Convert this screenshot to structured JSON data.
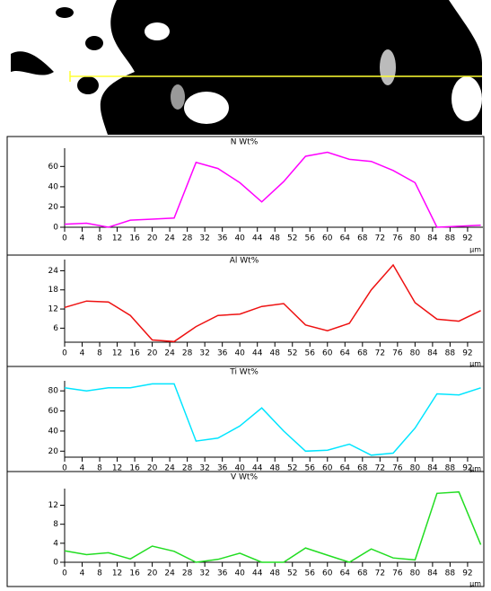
{
  "chart_data": [
    {
      "type": "line",
      "title": "N Wt%",
      "xlabel": "µm",
      "color": "#ff00ff",
      "x": [
        0,
        5,
        10,
        15,
        20,
        25,
        30,
        35,
        40,
        45,
        50,
        55,
        60,
        65,
        70,
        75,
        80,
        85,
        90,
        95
      ],
      "values": [
        3,
        4,
        0,
        7,
        8,
        9,
        64,
        58,
        44,
        25,
        45,
        70,
        74,
        67,
        65,
        56,
        44,
        0,
        1,
        2
      ],
      "xlim": [
        0,
        95.5
      ],
      "xticks": [
        0,
        4,
        8,
        12,
        16,
        20,
        24,
        28,
        32,
        36,
        40,
        44,
        48,
        52,
        56,
        60,
        64,
        68,
        72,
        76,
        80,
        84,
        88,
        92
      ],
      "ylim": [
        0,
        78
      ],
      "yticks": [
        0,
        20,
        40,
        60
      ]
    },
    {
      "type": "line",
      "title": "Al Wt%",
      "xlabel": "µm",
      "color": "#ee1111",
      "x": [
        0,
        5,
        10,
        15,
        20,
        25,
        30,
        35,
        40,
        45,
        50,
        55,
        60,
        65,
        70,
        75,
        80,
        85,
        90,
        95
      ],
      "values": [
        12.5,
        14.5,
        14.2,
        10,
        2.3,
        1.8,
        6.5,
        10,
        10.4,
        12.8,
        13.7,
        7,
        5.2,
        7.5,
        18,
        25.8,
        14,
        8.8,
        8.2,
        11.5
      ],
      "xlim": [
        0,
        95.5
      ],
      "xticks": [
        0,
        4,
        8,
        12,
        16,
        20,
        24,
        28,
        32,
        36,
        40,
        44,
        48,
        52,
        56,
        60,
        64,
        68,
        72,
        76,
        80,
        84,
        88,
        92
      ],
      "ylim": [
        1.6,
        27.5
      ],
      "yticks": [
        6,
        12,
        18,
        24
      ]
    },
    {
      "type": "line",
      "title": "Ti Wt%",
      "xlabel": "µm",
      "color": "#00e5ff",
      "x": [
        0,
        5,
        10,
        15,
        20,
        25,
        30,
        35,
        40,
        45,
        50,
        55,
        60,
        65,
        70,
        75,
        80,
        85,
        90,
        95
      ],
      "values": [
        83,
        80,
        83,
        83,
        87,
        87,
        30,
        33,
        45,
        63,
        40,
        20,
        21,
        27,
        16,
        18,
        43,
        77,
        76,
        83
      ],
      "xlim": [
        0,
        95.5
      ],
      "xticks": [
        0,
        4,
        8,
        12,
        16,
        20,
        24,
        28,
        32,
        36,
        40,
        44,
        48,
        52,
        56,
        60,
        64,
        68,
        72,
        76,
        80,
        84,
        88,
        92
      ],
      "ylim": [
        14,
        90
      ],
      "yticks": [
        20,
        40,
        60,
        80
      ]
    },
    {
      "type": "line",
      "title": "V Wt%",
      "xlabel": "µm",
      "color": "#22dd22",
      "x": [
        0,
        5,
        10,
        15,
        20,
        25,
        30,
        35,
        40,
        45,
        50,
        55,
        60,
        65,
        70,
        75,
        80,
        85,
        90,
        95
      ],
      "values": [
        2.4,
        1.6,
        2,
        0.7,
        3.4,
        2.3,
        0,
        0.6,
        1.9,
        0,
        0,
        3,
        1.5,
        0,
        2.8,
        0.9,
        0.5,
        14.5,
        14.8,
        3.7
      ],
      "xlim": [
        0,
        95.5
      ],
      "xticks": [
        0,
        4,
        8,
        12,
        16,
        20,
        24,
        28,
        32,
        36,
        40,
        44,
        48,
        52,
        56,
        60,
        64,
        68,
        72,
        76,
        80,
        84,
        88,
        92
      ],
      "ylim": [
        0,
        15.5
      ],
      "yticks": [
        0,
        4,
        8,
        12
      ]
    }
  ]
}
